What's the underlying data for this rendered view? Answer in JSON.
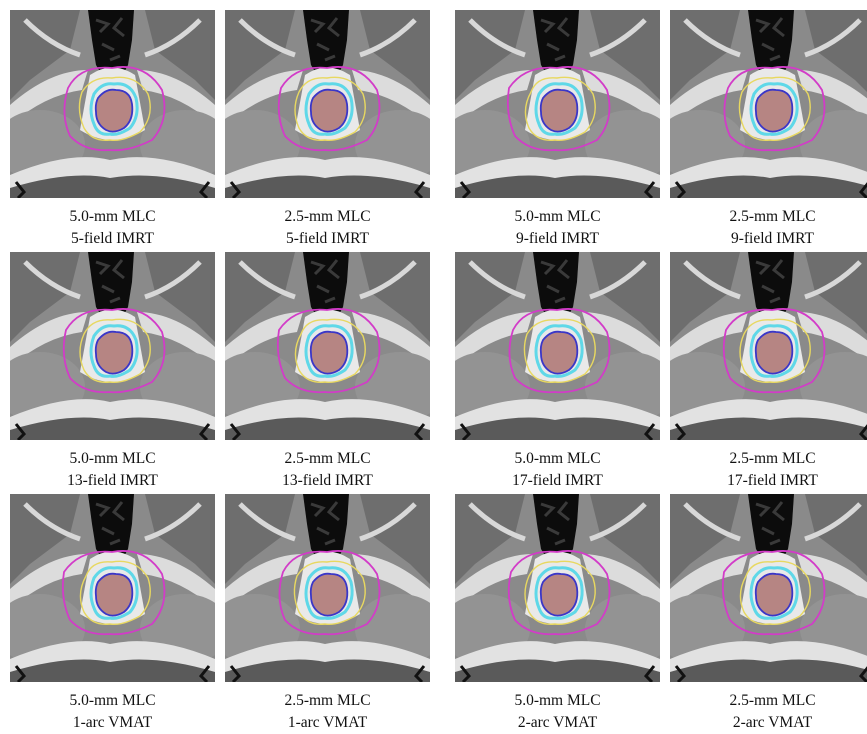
{
  "panels": [
    {
      "mlc": "5.0-mm MLC",
      "technique": "5-field IMRT"
    },
    {
      "mlc": "2.5-mm MLC",
      "technique": "5-field IMRT"
    },
    {
      "mlc": "5.0-mm MLC",
      "technique": "9-field IMRT"
    },
    {
      "mlc": "2.5-mm MLC",
      "technique": "9-field IMRT"
    },
    {
      "mlc": "5.0-mm MLC",
      "technique": "13-field IMRT"
    },
    {
      "mlc": "2.5-mm MLC",
      "technique": "13-field IMRT"
    },
    {
      "mlc": "5.0-mm MLC",
      "technique": "17-field IMRT"
    },
    {
      "mlc": "2.5-mm MLC",
      "technique": "17-field IMRT"
    },
    {
      "mlc": "5.0-mm MLC",
      "technique": "1-arc VMAT"
    },
    {
      "mlc": "2.5-mm MLC",
      "technique": "1-arc VMAT"
    },
    {
      "mlc": "5.0-mm MLC",
      "technique": "2-arc VMAT"
    },
    {
      "mlc": "2.5-mm MLC",
      "technique": "2-arc VMAT"
    }
  ],
  "colors": {
    "isodose_magenta": "#d23cc8",
    "isodose_yellow": "#e8d860",
    "isodose_cyan": "#5fd8e8",
    "isodose_blue": "#3a36c8",
    "target_fill": "#b07a78"
  }
}
